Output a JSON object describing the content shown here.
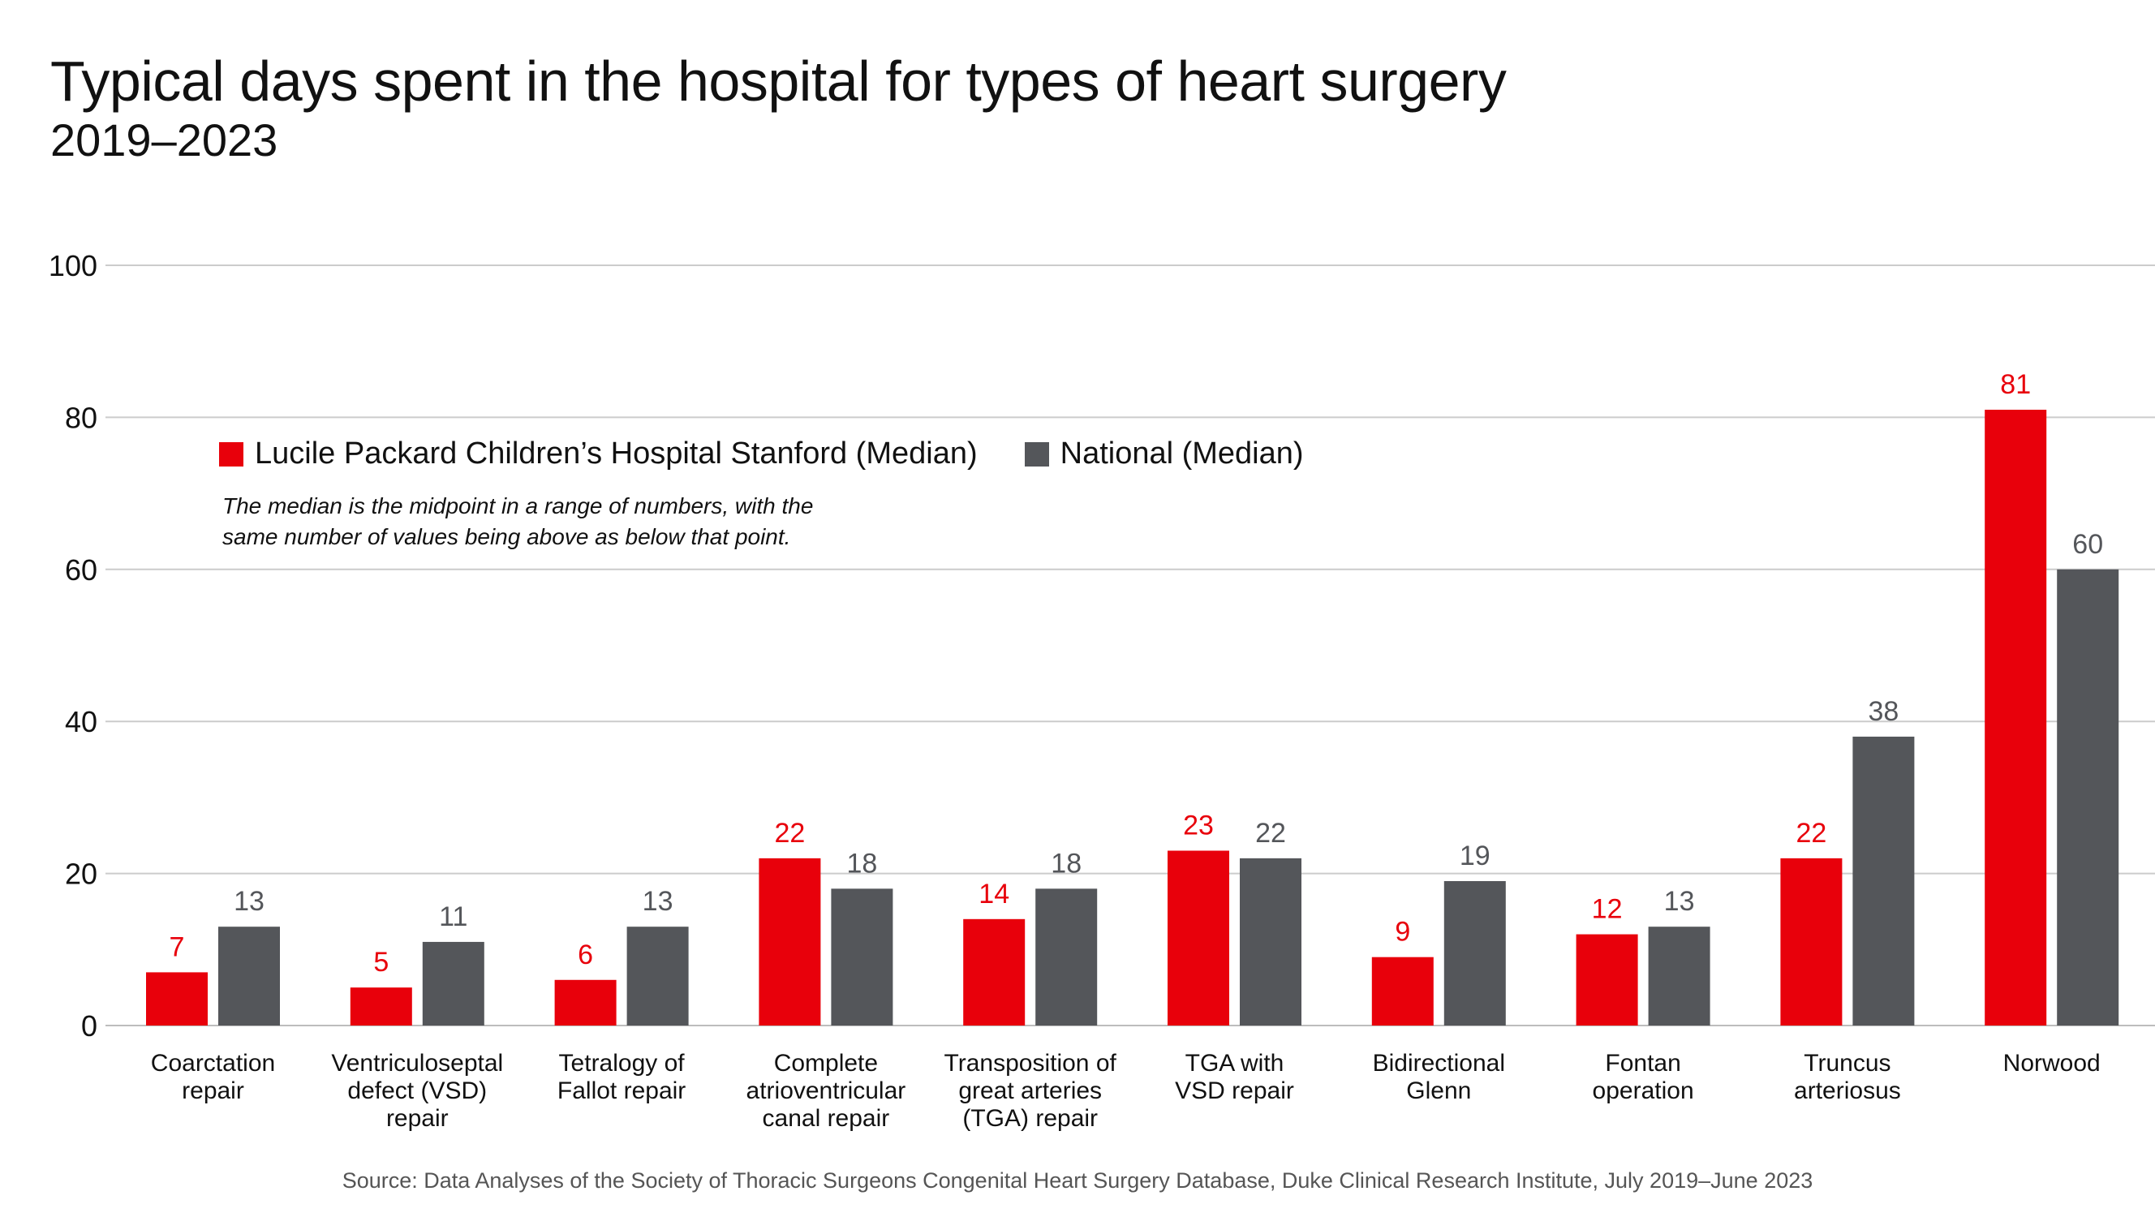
{
  "header": {
    "title": "Typical days spent in the hospital for types of heart surgery",
    "subtitle": "2019–2023"
  },
  "legend": {
    "items": [
      {
        "label": "Lucile Packard Children’s Hospital Stanford (Median)",
        "color": "#e8000b"
      },
      {
        "label": "National (Median)",
        "color": "#54565a"
      }
    ]
  },
  "note": "The median is the midpoint in a range of numbers, with the same number of values being above as below that point.",
  "source": "Source: Data Analyses of the Society of Thoracic Surgeons Congenital Heart Surgery Database, Duke Clinical Research Institute, July 2019–June 2023",
  "chart_data": {
    "type": "bar",
    "categories": [
      [
        "Coarctation",
        "repair"
      ],
      [
        "Ventriculoseptal",
        "defect (VSD)",
        "repair"
      ],
      [
        "Tetralogy of",
        "Fallot repair"
      ],
      [
        "Complete",
        "atrioventricular",
        "canal repair"
      ],
      [
        "Transposition of",
        "great arteries",
        "(TGA) repair"
      ],
      [
        "TGA with",
        "VSD repair"
      ],
      [
        "Bidirectional",
        "Glenn"
      ],
      [
        "Fontan",
        "operation"
      ],
      [
        "Truncus",
        "arteriosus"
      ],
      [
        "Norwood"
      ]
    ],
    "series": [
      {
        "name": "Lucile Packard Children’s Hospital Stanford (Median)",
        "color": "#e8000b",
        "label_color": "#e8000b",
        "values": [
          7,
          5,
          6,
          22,
          14,
          23,
          9,
          12,
          22,
          81
        ]
      },
      {
        "name": "National (Median)",
        "color": "#54565a",
        "label_color": "#54565a",
        "values": [
          13,
          11,
          13,
          18,
          18,
          22,
          19,
          13,
          38,
          60
        ]
      }
    ],
    "ylim": [
      0,
      100
    ],
    "yticks": [
      0,
      20,
      40,
      60,
      80,
      100
    ],
    "grid": true,
    "legend_position": "top-left"
  }
}
